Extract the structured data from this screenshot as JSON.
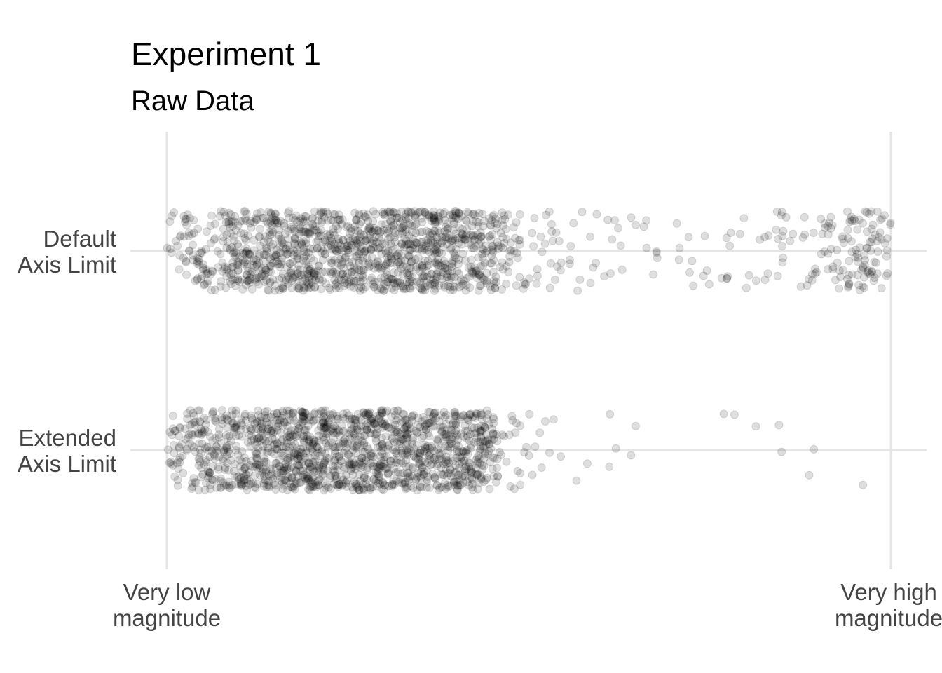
{
  "chart_data": {
    "type": "scatter",
    "title": "Experiment 1",
    "subtitle": "Raw Data",
    "xlabel": "",
    "ylabel": "",
    "x_tick_labels": [
      "Very low\nmagnitude",
      "Very high\nmagnitude"
    ],
    "xlim": [
      0,
      1
    ],
    "categories": [
      "Default\nAxis Limit",
      "Extended\nAxis Limit"
    ],
    "jitter": "vertical jitter within each category band",
    "point_color": "#000000",
    "point_opacity": 0.13,
    "grid": true,
    "legend": "none",
    "series": [
      {
        "category": "Default\nAxis Limit",
        "n_points": 1500,
        "density_profile": [
          [
            0.0,
            0.25
          ],
          [
            0.05,
            0.55
          ],
          [
            0.1,
            1.0
          ],
          [
            0.15,
            1.3
          ],
          [
            0.2,
            1.45
          ],
          [
            0.25,
            1.35
          ],
          [
            0.3,
            1.3
          ],
          [
            0.35,
            1.4
          ],
          [
            0.4,
            1.35
          ],
          [
            0.45,
            0.85
          ],
          [
            0.5,
            0.32
          ],
          [
            0.55,
            0.1
          ],
          [
            0.6,
            0.08
          ],
          [
            0.65,
            0.06
          ],
          [
            0.7,
            0.06
          ],
          [
            0.75,
            0.07
          ],
          [
            0.8,
            0.08
          ],
          [
            0.85,
            0.12
          ],
          [
            0.9,
            0.2
          ],
          [
            0.95,
            0.4
          ],
          [
            1.0,
            0.55
          ]
        ]
      },
      {
        "category": "Extended\nAxis Limit",
        "n_points": 1500,
        "density_profile": [
          [
            0.0,
            0.25
          ],
          [
            0.05,
            0.65
          ],
          [
            0.1,
            1.0
          ],
          [
            0.15,
            1.3
          ],
          [
            0.2,
            1.5
          ],
          [
            0.25,
            1.45
          ],
          [
            0.3,
            1.4
          ],
          [
            0.35,
            1.35
          ],
          [
            0.4,
            1.25
          ],
          [
            0.44,
            1.0
          ],
          [
            0.46,
            0.25
          ],
          [
            0.5,
            0.1
          ],
          [
            0.55,
            0.05
          ],
          [
            0.6,
            0.03
          ],
          [
            0.65,
            0.02
          ],
          [
            0.7,
            0.015
          ],
          [
            0.75,
            0.012
          ],
          [
            0.8,
            0.012
          ],
          [
            0.85,
            0.01
          ],
          [
            0.9,
            0.01
          ],
          [
            0.95,
            0.01
          ],
          [
            1.0,
            0.01
          ]
        ]
      }
    ]
  }
}
